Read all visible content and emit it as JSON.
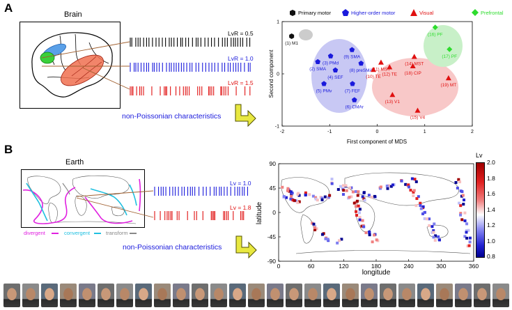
{
  "panel_a": {
    "letter": "A",
    "brain_title": "Brain",
    "spike_labels": [
      "LvR = 0.5",
      "LvR = 1.0",
      "LvR = 1.5"
    ],
    "caption": "non-Poissonian characteristics",
    "legend": [
      {
        "label": "Primary motor",
        "color": "#111111",
        "marker": "hexagon"
      },
      {
        "label": "Higher-order motor",
        "color": "#1a1adc",
        "marker": "pentagon"
      },
      {
        "label": "Visual",
        "color": "#e01010",
        "marker": "triangle"
      },
      {
        "label": "Prefrontal",
        "color": "#2edc2e",
        "marker": "diamond"
      }
    ]
  },
  "panel_b": {
    "letter": "B",
    "earth_title": "Earth",
    "spike_labels": [
      "Lv = 1.0",
      "Lv = 1.8"
    ],
    "map_legend": [
      {
        "label": "divergent",
        "color": "#e020e0"
      },
      {
        "label": "convergent",
        "color": "#20c0e0"
      },
      {
        "label": "transform",
        "color": "#888888"
      }
    ],
    "caption": "non-Poissonian characteristics",
    "colorbar_title": "Lv",
    "colorbar_ticks": [
      "2.0",
      "1.8",
      "1.6",
      "1.4",
      "1.2",
      "1.0",
      "0.8"
    ]
  },
  "chart_data": [
    {
      "type": "scatter",
      "xlabel": "First component of MDS",
      "ylabel": "Second component",
      "xlim": [
        -2,
        2
      ],
      "ylim": [
        -1,
        1
      ],
      "xticks": [
        "-2",
        "-1",
        "0",
        "1",
        "2"
      ],
      "yticks": [
        "1",
        "0",
        "-1"
      ],
      "groups": [
        {
          "name": "Primary motor",
          "color": "#111111",
          "marker": "hexagon",
          "points": [
            {
              "label": "(1) M1",
              "x": -1.8,
              "y": 0.72
            }
          ]
        },
        {
          "name": "Higher-order motor",
          "color": "#1a1adc",
          "marker": "pentagon",
          "points": [
            {
              "label": "(2) SMA",
              "x": -1.25,
              "y": 0.23
            },
            {
              "label": "(3) PMd",
              "x": -0.98,
              "y": 0.34
            },
            {
              "label": "(4) SEF",
              "x": -0.88,
              "y": 0.07
            },
            {
              "label": "(5) PMv",
              "x": -1.12,
              "y": -0.19
            },
            {
              "label": "(6) CMAr",
              "x": -0.48,
              "y": -0.5
            },
            {
              "label": "(7) FEF",
              "x": -0.52,
              "y": -0.19
            },
            {
              "label": "(8) preSMA",
              "x": -0.34,
              "y": 0.2
            },
            {
              "label": "(9) SMA",
              "x": -0.53,
              "y": 0.46
            }
          ]
        },
        {
          "name": "Visual",
          "color": "#e01010",
          "marker": "triangle",
          "points": [
            {
              "label": "(10) TE",
              "x": -0.08,
              "y": 0.08
            },
            {
              "label": "(11) MST",
              "x": 0.08,
              "y": 0.22
            },
            {
              "label": "(12) TE",
              "x": 0.26,
              "y": 0.13
            },
            {
              "label": "(13) V1",
              "x": 0.32,
              "y": -0.4
            },
            {
              "label": "(14) MST",
              "x": 0.78,
              "y": 0.33
            },
            {
              "label": "(15) V4",
              "x": 0.85,
              "y": -0.7
            },
            {
              "label": "(18) CIP",
              "x": 0.75,
              "y": 0.15
            },
            {
              "label": "(19) MT",
              "x": 1.5,
              "y": -0.08
            }
          ]
        },
        {
          "name": "Prefrontal",
          "color": "#2edc2e",
          "marker": "diamond",
          "points": [
            {
              "label": "(16) PF",
              "x": 1.22,
              "y": 0.89
            },
            {
              "label": "(17) PF",
              "x": 1.52,
              "y": 0.47
            }
          ]
        }
      ]
    },
    {
      "type": "heatmap",
      "xlabel": "longitude",
      "ylabel": "latitude",
      "xlim": [
        0,
        360
      ],
      "ylim": [
        -90,
        90
      ],
      "xticks": [
        "0",
        "60",
        "120",
        "180",
        "240",
        "300",
        "360"
      ],
      "yticks": [
        "90",
        "45",
        "0",
        "-45",
        "-90"
      ],
      "colorbar_title": "Lv",
      "colorbar_range": [
        0.8,
        2.0
      ]
    }
  ]
}
